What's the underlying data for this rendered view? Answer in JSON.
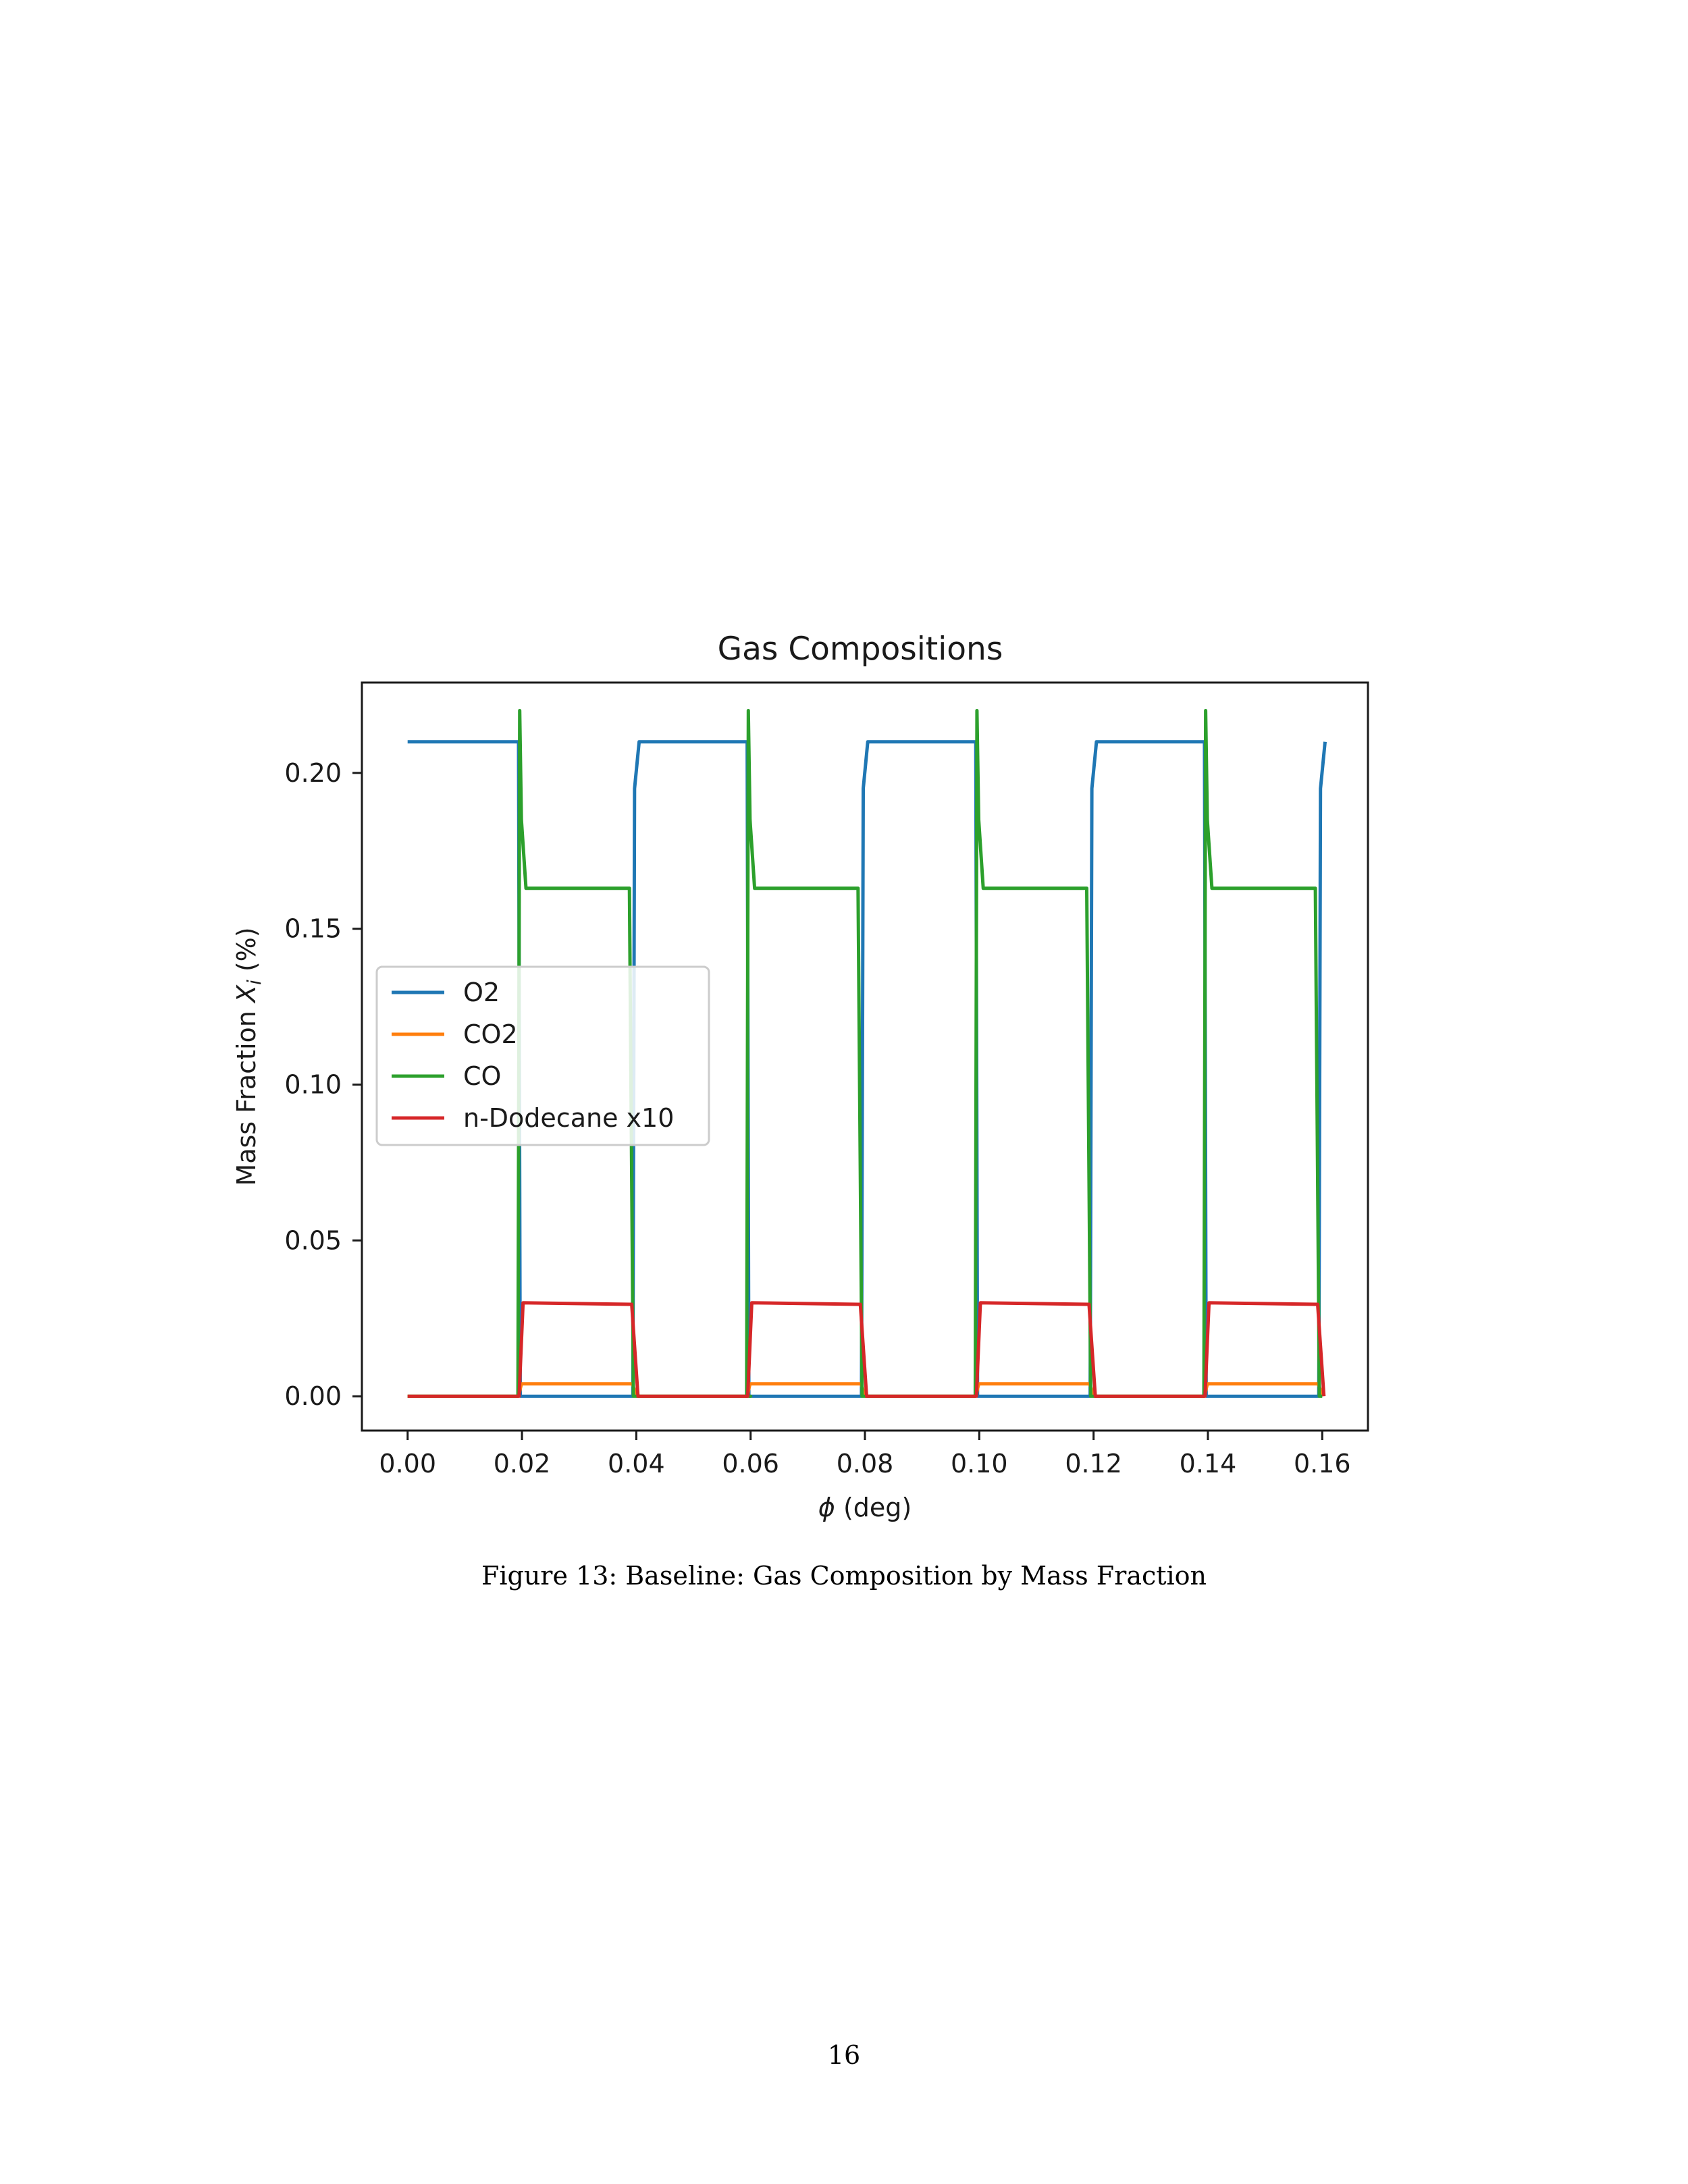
{
  "chart_data": {
    "type": "line",
    "title": "Gas Compositions",
    "xlabel_symbol": "ϕ",
    "xlabel_text": " (deg)",
    "ylabel_main": "Mass Fraction ",
    "ylabel_symbol": "X",
    "ylabel_subscript": "i",
    "ylabel_unit": " (%)",
    "xlim": [
      -0.008,
      0.168
    ],
    "ylim": [
      -0.011,
      0.229
    ],
    "x_ticks": [
      0.0,
      0.02,
      0.04,
      0.06,
      0.08,
      0.1,
      0.12,
      0.14,
      0.16
    ],
    "x_tick_labels": [
      "0.00",
      "0.02",
      "0.04",
      "0.06",
      "0.08",
      "0.10",
      "0.12",
      "0.14",
      "0.16"
    ],
    "y_ticks": [
      0.0,
      0.05,
      0.1,
      0.15,
      0.2
    ],
    "y_tick_labels": [
      "0.00",
      "0.05",
      "0.10",
      "0.15",
      "0.20"
    ],
    "grid": false,
    "legend_position": "center-left",
    "series": [
      {
        "name": "O2",
        "color": "#1f77b4",
        "x": [
          0.0,
          0.0194,
          0.0197,
          0.0394,
          0.0397,
          0.0405,
          0.0594,
          0.0597,
          0.0794,
          0.0797,
          0.0805,
          0.0994,
          0.0997,
          0.1194,
          0.1197,
          0.1205,
          0.1394,
          0.1397,
          0.1594,
          0.1597,
          0.1605
        ],
        "y": [
          0.21,
          0.21,
          0.0,
          0.0,
          0.195,
          0.21,
          0.21,
          0.0,
          0.0,
          0.195,
          0.21,
          0.21,
          0.0,
          0.0,
          0.195,
          0.21,
          0.21,
          0.0,
          0.0,
          0.195,
          0.21
        ]
      },
      {
        "name": "CO2",
        "color": "#ff7f0e",
        "x": [
          0.0,
          0.0194,
          0.0199,
          0.0393,
          0.0401,
          0.0594,
          0.0599,
          0.0793,
          0.0801,
          0.0994,
          0.0999,
          0.1193,
          0.1201,
          0.1394,
          0.1399,
          0.1593,
          0.1601
        ],
        "y": [
          0.0,
          0.0,
          0.004,
          0.004,
          0.0,
          0.0,
          0.004,
          0.004,
          0.0,
          0.0,
          0.004,
          0.004,
          0.0,
          0.0,
          0.004,
          0.004,
          0.0
        ]
      },
      {
        "name": "CO",
        "color": "#2ca02c",
        "x": [
          0.0,
          0.0193,
          0.0196,
          0.0199,
          0.0207,
          0.0388,
          0.0395,
          0.06,
          0.0593,
          0.0596,
          0.0599,
          0.0607,
          0.0788,
          0.0795,
          0.08,
          0.0993,
          0.0996,
          0.0999,
          0.1007,
          0.1188,
          0.1195,
          0.12,
          0.1393,
          0.1396,
          0.1399,
          0.1407,
          0.1588,
          0.1595,
          0.16
        ],
        "y": [
          0.0,
          0.0,
          0.22,
          0.185,
          0.163,
          0.163,
          0.0,
          0.0,
          0.0,
          0.22,
          0.185,
          0.163,
          0.163,
          0.0,
          0.0,
          0.0,
          0.22,
          0.185,
          0.163,
          0.163,
          0.0,
          0.0,
          0.0,
          0.22,
          0.185,
          0.163,
          0.163,
          0.0,
          0.0
        ]
      },
      {
        "name": "n-Dodecane x10",
        "color": "#d62728",
        "x": [
          0.0,
          0.0195,
          0.0202,
          0.0392,
          0.0403,
          0.0595,
          0.0602,
          0.0792,
          0.0803,
          0.0995,
          0.1002,
          0.1192,
          0.1203,
          0.1395,
          0.1402,
          0.1592,
          0.1603
        ],
        "y": [
          0.0,
          0.0,
          0.03,
          0.0295,
          0.0,
          0.0,
          0.03,
          0.0295,
          0.0,
          0.0,
          0.03,
          0.0295,
          0.0,
          0.0,
          0.03,
          0.0295,
          0.0
        ]
      }
    ]
  },
  "caption": "Figure 13: Baseline: Gas Composition by Mass Fraction",
  "page_number": "16"
}
